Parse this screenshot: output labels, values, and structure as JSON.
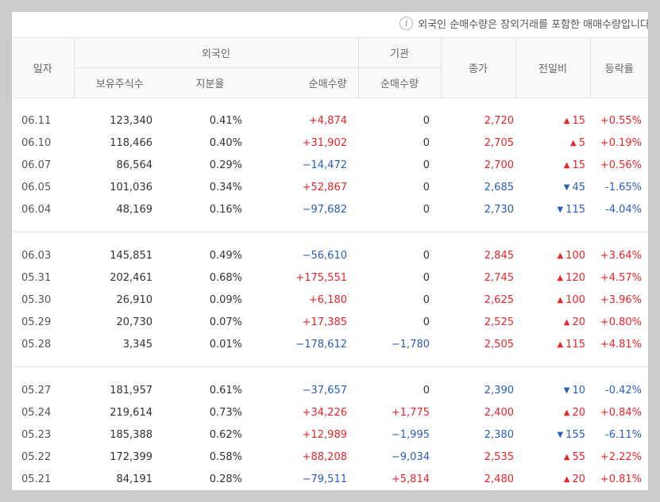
{
  "notice": "외국인 순매수량은 장외거래를 포함한 매매수량입니다.",
  "headers": {
    "date": "일자",
    "foreign": "외국인",
    "institution": "기관",
    "holdings": "보유주식수",
    "ratio": "지분율",
    "net_buy": "순매수량",
    "inst_net_buy": "순매수량",
    "close": "종가",
    "change": "전일비",
    "rate": "등락률"
  },
  "colors": {
    "up": "#e5262d",
    "down": "#2a5ebe"
  },
  "groups": [
    [
      {
        "date": "06.11",
        "holdings": "123,340",
        "ratio": "0.41%",
        "net": "+4,874",
        "net_dir": "up",
        "inst": "0",
        "inst_dir": "flat",
        "close": "2,720",
        "close_dir": "up",
        "chg": "15",
        "chg_dir": "up",
        "rate": "+0.55%",
        "rate_dir": "up"
      },
      {
        "date": "06.10",
        "holdings": "118,466",
        "ratio": "0.40%",
        "net": "+31,902",
        "net_dir": "up",
        "inst": "0",
        "inst_dir": "flat",
        "close": "2,705",
        "close_dir": "up",
        "chg": "5",
        "chg_dir": "up",
        "rate": "+0.19%",
        "rate_dir": "up"
      },
      {
        "date": "06.07",
        "holdings": "86,564",
        "ratio": "0.29%",
        "net": "−14,472",
        "net_dir": "down",
        "inst": "0",
        "inst_dir": "flat",
        "close": "2,700",
        "close_dir": "up",
        "chg": "15",
        "chg_dir": "up",
        "rate": "+0.56%",
        "rate_dir": "up"
      },
      {
        "date": "06.05",
        "holdings": "101,036",
        "ratio": "0.34%",
        "net": "+52,867",
        "net_dir": "up",
        "inst": "0",
        "inst_dir": "flat",
        "close": "2,685",
        "close_dir": "down",
        "chg": "45",
        "chg_dir": "down",
        "rate": "-1.65%",
        "rate_dir": "down"
      },
      {
        "date": "06.04",
        "holdings": "48,169",
        "ratio": "0.16%",
        "net": "−97,682",
        "net_dir": "down",
        "inst": "0",
        "inst_dir": "flat",
        "close": "2,730",
        "close_dir": "down",
        "chg": "115",
        "chg_dir": "down",
        "rate": "-4.04%",
        "rate_dir": "down"
      }
    ],
    [
      {
        "date": "06.03",
        "holdings": "145,851",
        "ratio": "0.49%",
        "net": "−56,610",
        "net_dir": "down",
        "inst": "0",
        "inst_dir": "flat",
        "close": "2,845",
        "close_dir": "up",
        "chg": "100",
        "chg_dir": "up",
        "rate": "+3.64%",
        "rate_dir": "up"
      },
      {
        "date": "05.31",
        "holdings": "202,461",
        "ratio": "0.68%",
        "net": "+175,551",
        "net_dir": "up",
        "inst": "0",
        "inst_dir": "flat",
        "close": "2,745",
        "close_dir": "up",
        "chg": "120",
        "chg_dir": "up",
        "rate": "+4.57%",
        "rate_dir": "up"
      },
      {
        "date": "05.30",
        "holdings": "26,910",
        "ratio": "0.09%",
        "net": "+6,180",
        "net_dir": "up",
        "inst": "0",
        "inst_dir": "flat",
        "close": "2,625",
        "close_dir": "up",
        "chg": "100",
        "chg_dir": "up",
        "rate": "+3.96%",
        "rate_dir": "up"
      },
      {
        "date": "05.29",
        "holdings": "20,730",
        "ratio": "0.07%",
        "net": "+17,385",
        "net_dir": "up",
        "inst": "0",
        "inst_dir": "flat",
        "close": "2,525",
        "close_dir": "up",
        "chg": "20",
        "chg_dir": "up",
        "rate": "+0.80%",
        "rate_dir": "up"
      },
      {
        "date": "05.28",
        "holdings": "3,345",
        "ratio": "0.01%",
        "net": "−178,612",
        "net_dir": "down",
        "inst": "−1,780",
        "inst_dir": "down",
        "close": "2,505",
        "close_dir": "up",
        "chg": "115",
        "chg_dir": "up",
        "rate": "+4.81%",
        "rate_dir": "up"
      }
    ],
    [
      {
        "date": "05.27",
        "holdings": "181,957",
        "ratio": "0.61%",
        "net": "−37,657",
        "net_dir": "down",
        "inst": "0",
        "inst_dir": "flat",
        "close": "2,390",
        "close_dir": "down",
        "chg": "10",
        "chg_dir": "down",
        "rate": "-0.42%",
        "rate_dir": "down"
      },
      {
        "date": "05.24",
        "holdings": "219,614",
        "ratio": "0.73%",
        "net": "+34,226",
        "net_dir": "up",
        "inst": "+1,775",
        "inst_dir": "up",
        "close": "2,400",
        "close_dir": "up",
        "chg": "20",
        "chg_dir": "up",
        "rate": "+0.84%",
        "rate_dir": "up"
      },
      {
        "date": "05.23",
        "holdings": "185,388",
        "ratio": "0.62%",
        "net": "+12,989",
        "net_dir": "up",
        "inst": "−1,995",
        "inst_dir": "down",
        "close": "2,380",
        "close_dir": "down",
        "chg": "155",
        "chg_dir": "down",
        "rate": "-6.11%",
        "rate_dir": "down"
      },
      {
        "date": "05.22",
        "holdings": "172,399",
        "ratio": "0.58%",
        "net": "+88,208",
        "net_dir": "up",
        "inst": "−9,034",
        "inst_dir": "down",
        "close": "2,535",
        "close_dir": "up",
        "chg": "55",
        "chg_dir": "up",
        "rate": "+2.22%",
        "rate_dir": "up"
      },
      {
        "date": "05.21",
        "holdings": "84,191",
        "ratio": "0.28%",
        "net": "−79,511",
        "net_dir": "down",
        "inst": "+5,814",
        "inst_dir": "up",
        "close": "2,480",
        "close_dir": "up",
        "chg": "20",
        "chg_dir": "up",
        "rate": "+0.81%",
        "rate_dir": "up"
      }
    ]
  ]
}
